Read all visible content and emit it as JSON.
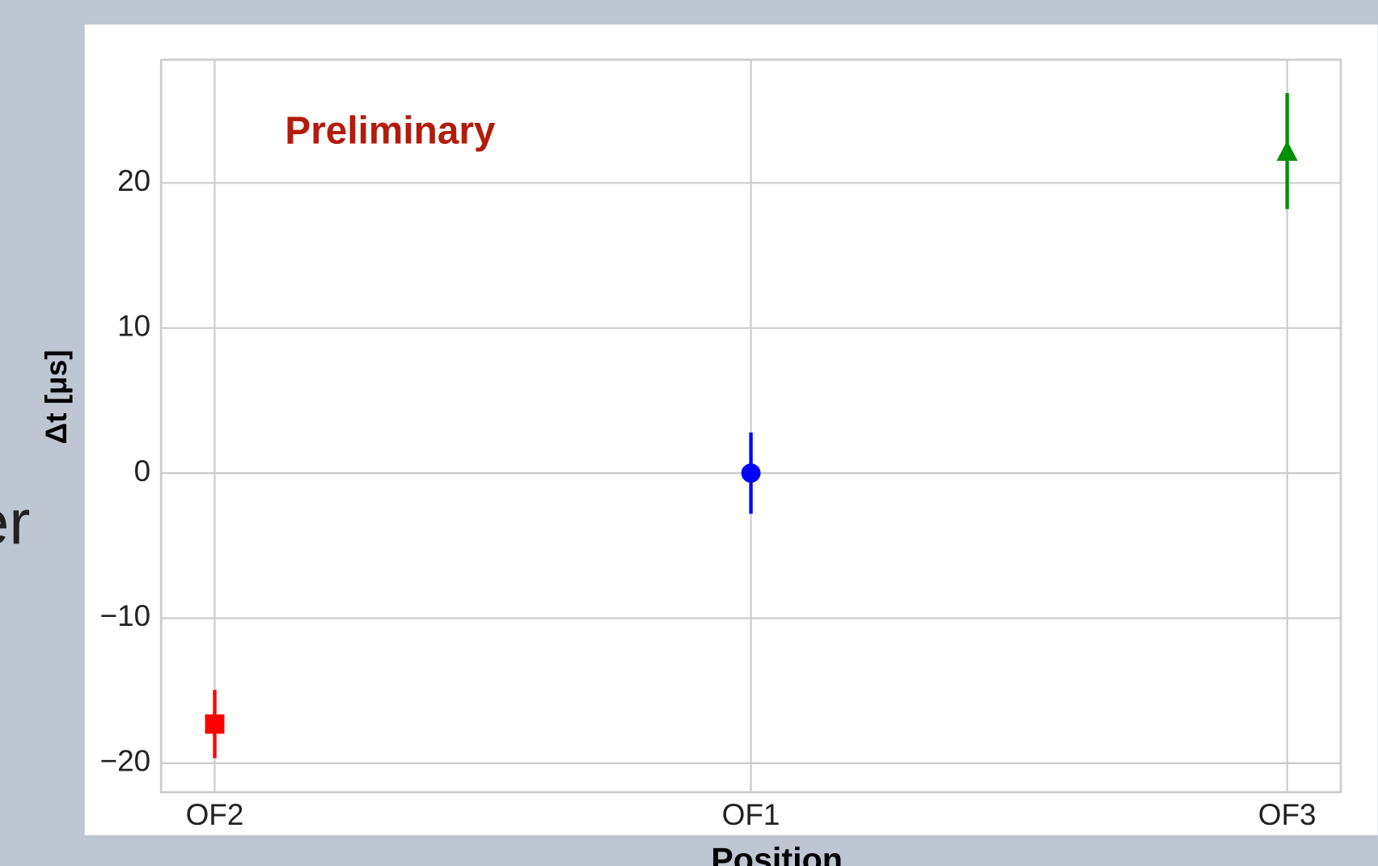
{
  "background_text": "er",
  "chart_data": {
    "type": "errorbar",
    "annotation": "Preliminary",
    "xlabel": "Position",
    "ylabel": "Δt [μs]",
    "categories": [
      "OF2",
      "OF1",
      "OF3"
    ],
    "values": [
      -17.3,
      0,
      22.2
    ],
    "errors": [
      2.35,
      2.8,
      4.0
    ],
    "colors": [
      "#ff0000",
      "#0000ff",
      "#008f00"
    ],
    "markers": [
      "square",
      "circle",
      "triangle"
    ],
    "ylim": [
      -22.0,
      28.5
    ],
    "yticks": [
      {
        "value": -20,
        "label": "−20"
      },
      {
        "value": -10,
        "label": "−10"
      },
      0,
      10,
      20
    ],
    "grid": true
  }
}
